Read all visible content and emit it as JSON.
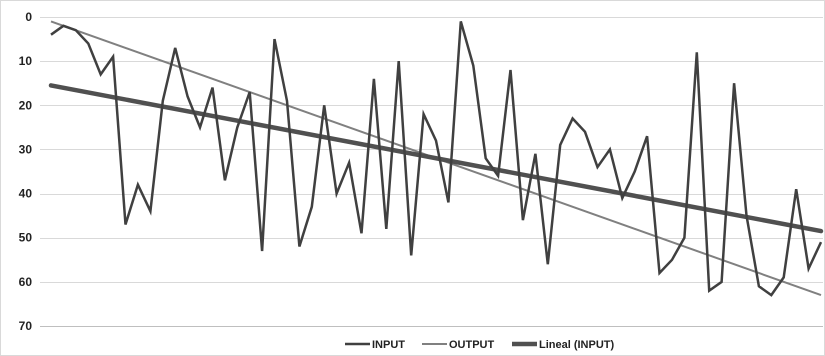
{
  "chart_data": {
    "type": "line",
    "title": "",
    "xlabel": "",
    "ylabel": "",
    "y_axis_inverted": true,
    "ylim": [
      0,
      70
    ],
    "yticks": [
      "0",
      "10",
      "20",
      "30",
      "40",
      "50",
      "60",
      "70"
    ],
    "grid": "horizontal",
    "legend_position": "bottom",
    "series": [
      {
        "name": "INPUT",
        "color": "#404040",
        "values": [
          4,
          2,
          3,
          6,
          13,
          9,
          47,
          38,
          44,
          19,
          7,
          18,
          25,
          16,
          37,
          25,
          17,
          53,
          5,
          19,
          52,
          43,
          20,
          40,
          33,
          49,
          14,
          48,
          10,
          54,
          22,
          28,
          42,
          1,
          11,
          32,
          36,
          12,
          46,
          31,
          56,
          29,
          23,
          26,
          34,
          30,
          41,
          35,
          27,
          58,
          55,
          50,
          8,
          62,
          60,
          15,
          45,
          61,
          63,
          59,
          39,
          57,
          51
        ]
      },
      {
        "name": "OUTPUT",
        "color": "#808080",
        "start_value": 1,
        "end_value": 63
      },
      {
        "name": "Lineal (INPUT)",
        "color": "#505050",
        "start_value": 15.5,
        "end_value": 48.5
      }
    ]
  }
}
